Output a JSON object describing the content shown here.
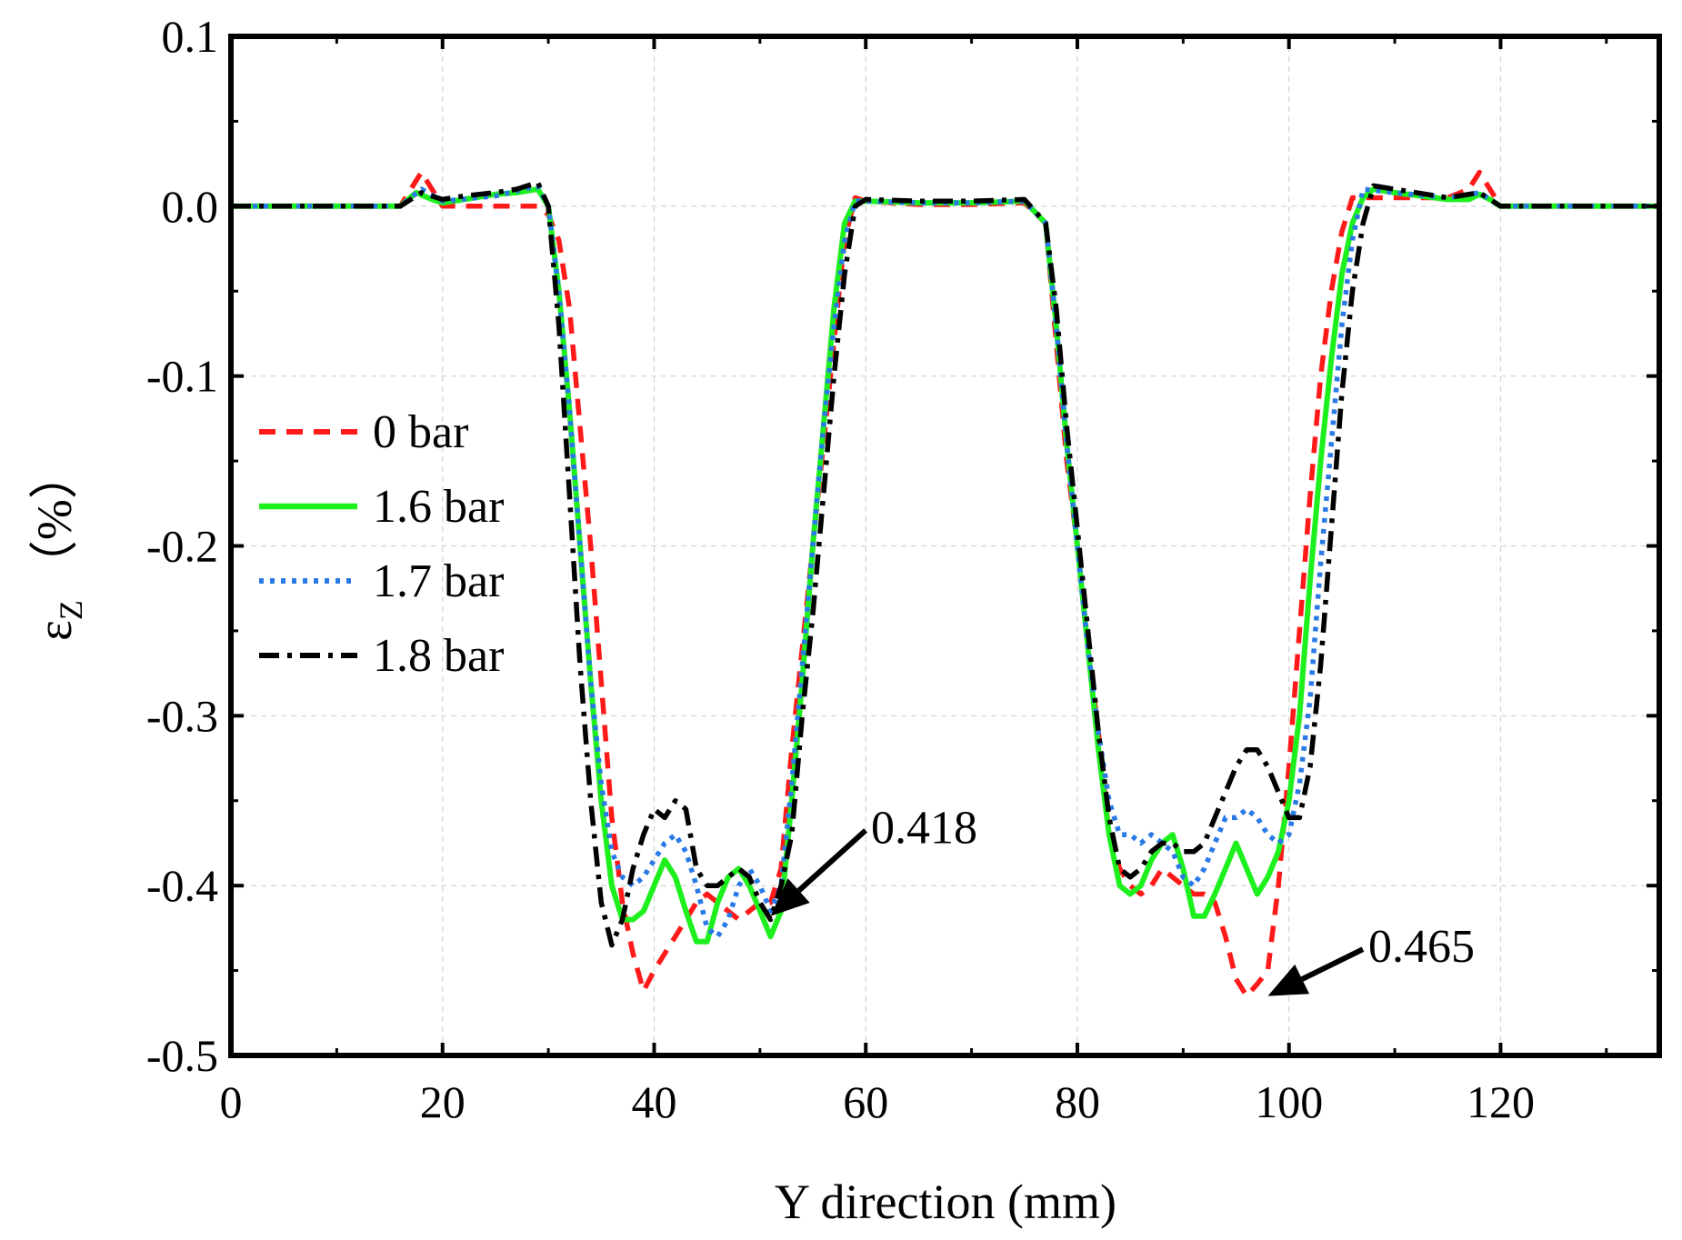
{
  "chart_data": {
    "type": "line",
    "title": "",
    "xlabel": "Y direction (mm)",
    "ylabel_symbol": "ε",
    "ylabel_sub": "Z",
    "ylabel_unit": "（%）",
    "xlim": [
      0,
      135
    ],
    "ylim": [
      -0.5,
      0.1
    ],
    "xticks": [
      0,
      20,
      40,
      60,
      80,
      100,
      120
    ],
    "xtick_labels": [
      "0",
      "20",
      "40",
      "60",
      "80",
      "100",
      "120"
    ],
    "yticks": [
      0.1,
      0.0,
      -0.1,
      -0.2,
      -0.3,
      -0.4,
      -0.5
    ],
    "ytick_labels": [
      "0.1",
      "0.0",
      "-0.1",
      "-0.2",
      "-0.3",
      "-0.4",
      "-0.5"
    ],
    "grid": true,
    "legend_position": "left-middle",
    "series": [
      {
        "name": "0 bar",
        "color": "#ff1a1a",
        "style": "dashed",
        "x": [
          0,
          16,
          18,
          20,
          25,
          28,
          29,
          30,
          31,
          32,
          33,
          34,
          35,
          36,
          37,
          38,
          39,
          40,
          41,
          42,
          43,
          44,
          45,
          46,
          47,
          48,
          49,
          50,
          51,
          52,
          53,
          54,
          55,
          56,
          57,
          58,
          59,
          60,
          65,
          70,
          75,
          77,
          78,
          79,
          80,
          81,
          82,
          83,
          84,
          85,
          86,
          87,
          88,
          89,
          90,
          91,
          92,
          93,
          94,
          95,
          96,
          97,
          98,
          99,
          100,
          101,
          102,
          103,
          104,
          105,
          106,
          107,
          110,
          115,
          117,
          118,
          120,
          135
        ],
        "y": [
          0,
          0,
          0.02,
          0,
          0,
          0,
          0,
          -0.005,
          -0.02,
          -0.06,
          -0.13,
          -0.2,
          -0.28,
          -0.36,
          -0.41,
          -0.44,
          -0.462,
          -0.45,
          -0.44,
          -0.43,
          -0.42,
          -0.41,
          -0.405,
          -0.41,
          -0.415,
          -0.42,
          -0.415,
          -0.41,
          -0.41,
          -0.39,
          -0.32,
          -0.26,
          -0.2,
          -0.14,
          -0.08,
          -0.02,
          0.005,
          0.003,
          0.001,
          0.001,
          0.002,
          -0.01,
          -0.08,
          -0.15,
          -0.2,
          -0.26,
          -0.31,
          -0.37,
          -0.39,
          -0.4,
          -0.405,
          -0.4,
          -0.39,
          -0.395,
          -0.4,
          -0.405,
          -0.405,
          -0.41,
          -0.43,
          -0.455,
          -0.465,
          -0.458,
          -0.45,
          -0.4,
          -0.33,
          -0.25,
          -0.17,
          -0.1,
          -0.05,
          -0.015,
          0.005,
          0.005,
          0.005,
          0.005,
          0.01,
          0.02,
          0,
          0
        ]
      },
      {
        "name": "1.6 bar",
        "color": "#1ef01e",
        "style": "solid",
        "x": [
          0,
          16,
          17.5,
          19,
          20,
          22,
          25,
          27,
          29,
          30,
          31,
          32,
          33,
          34,
          35,
          36,
          37,
          38,
          39,
          40,
          41,
          42,
          43,
          44,
          45,
          46,
          47,
          48,
          49,
          50,
          51,
          52,
          53,
          54,
          55,
          56,
          57,
          58,
          59,
          60,
          65,
          70,
          75,
          77,
          78,
          79,
          80,
          81,
          82,
          83,
          84,
          85,
          86,
          87,
          88,
          89,
          90,
          91,
          92,
          93,
          94,
          95,
          96,
          97,
          98,
          99,
          100,
          101,
          102,
          103,
          104,
          105,
          106,
          107,
          108,
          110,
          115,
          117,
          118,
          119,
          120,
          135
        ],
        "y": [
          0,
          0,
          0.008,
          0.004,
          0.002,
          0.004,
          0.007,
          0.008,
          0.01,
          0,
          -0.05,
          -0.12,
          -0.2,
          -0.28,
          -0.35,
          -0.4,
          -0.42,
          -0.42,
          -0.415,
          -0.4,
          -0.385,
          -0.395,
          -0.415,
          -0.433,
          -0.433,
          -0.41,
          -0.395,
          -0.39,
          -0.4,
          -0.415,
          -0.43,
          -0.415,
          -0.35,
          -0.28,
          -0.2,
          -0.13,
          -0.06,
          -0.01,
          0.003,
          0.003,
          0.002,
          0.002,
          0.003,
          -0.01,
          -0.07,
          -0.14,
          -0.2,
          -0.26,
          -0.32,
          -0.37,
          -0.4,
          -0.405,
          -0.4,
          -0.385,
          -0.375,
          -0.37,
          -0.39,
          -0.418,
          -0.418,
          -0.405,
          -0.39,
          -0.375,
          -0.39,
          -0.405,
          -0.395,
          -0.38,
          -0.35,
          -0.3,
          -0.22,
          -0.15,
          -0.09,
          -0.04,
          -0.01,
          0.005,
          0.01,
          0.008,
          0.004,
          0.004,
          0.007,
          0.004,
          0,
          0
        ]
      },
      {
        "name": "1.7 bar",
        "color": "#2a7ae6",
        "style": "dotted",
        "x": [
          0,
          16,
          18,
          20,
          25,
          29,
          30,
          31,
          32,
          33,
          34,
          35,
          36,
          37,
          38,
          39,
          40,
          41,
          42,
          43,
          44,
          45,
          46,
          47,
          48,
          49,
          50,
          51,
          52,
          53,
          54,
          55,
          56,
          57,
          58,
          59,
          60,
          65,
          70,
          75,
          77,
          78,
          79,
          80,
          81,
          82,
          83,
          84,
          85,
          86,
          87,
          88,
          89,
          90,
          91,
          92,
          93,
          94,
          95,
          96,
          97,
          98,
          99,
          100,
          101,
          102,
          103,
          104,
          105,
          106,
          107,
          110,
          115,
          118,
          120,
          135
        ],
        "y": [
          0,
          0,
          0.01,
          0.003,
          0.006,
          0.012,
          0,
          -0.05,
          -0.12,
          -0.2,
          -0.28,
          -0.34,
          -0.38,
          -0.395,
          -0.4,
          -0.395,
          -0.385,
          -0.375,
          -0.37,
          -0.38,
          -0.4,
          -0.425,
          -0.43,
          -0.42,
          -0.4,
          -0.39,
          -0.4,
          -0.415,
          -0.4,
          -0.34,
          -0.27,
          -0.2,
          -0.13,
          -0.07,
          -0.02,
          0.003,
          0.003,
          0.002,
          0.002,
          0.003,
          -0.01,
          -0.07,
          -0.14,
          -0.2,
          -0.26,
          -0.31,
          -0.35,
          -0.37,
          -0.37,
          -0.375,
          -0.37,
          -0.375,
          -0.38,
          -0.395,
          -0.4,
          -0.39,
          -0.375,
          -0.36,
          -0.36,
          -0.355,
          -0.36,
          -0.37,
          -0.375,
          -0.37,
          -0.34,
          -0.29,
          -0.21,
          -0.14,
          -0.07,
          -0.02,
          0.01,
          0.008,
          0.005,
          0.008,
          0,
          0
        ]
      },
      {
        "name": "1.8 bar",
        "color": "#000000",
        "style": "dashdot",
        "x": [
          0,
          16,
          18,
          20,
          22,
          25,
          27,
          29,
          30,
          31,
          32,
          33,
          34,
          35,
          36,
          37,
          38,
          39,
          40,
          41,
          42,
          43,
          44,
          45,
          46,
          47,
          48,
          49,
          50,
          51,
          52,
          53,
          54,
          55,
          56,
          57,
          58,
          59,
          60,
          65,
          70,
          75,
          77,
          78,
          79,
          80,
          81,
          82,
          83,
          84,
          85,
          86,
          87,
          88,
          89,
          90,
          91,
          92,
          93,
          94,
          95,
          96,
          97,
          98,
          99,
          100,
          101,
          102,
          103,
          104,
          105,
          106,
          107,
          108,
          110,
          115,
          118,
          120,
          135
        ],
        "y": [
          0,
          0,
          0.008,
          0.004,
          0.006,
          0.008,
          0.01,
          0.014,
          0,
          -0.07,
          -0.17,
          -0.27,
          -0.35,
          -0.41,
          -0.435,
          -0.42,
          -0.39,
          -0.37,
          -0.355,
          -0.36,
          -0.35,
          -0.355,
          -0.39,
          -0.4,
          -0.4,
          -0.395,
          -0.39,
          -0.395,
          -0.41,
          -0.42,
          -0.4,
          -0.37,
          -0.3,
          -0.24,
          -0.17,
          -0.1,
          -0.04,
          0,
          0.004,
          0.003,
          0.003,
          0.004,
          -0.01,
          -0.06,
          -0.13,
          -0.19,
          -0.25,
          -0.31,
          -0.36,
          -0.39,
          -0.395,
          -0.39,
          -0.38,
          -0.375,
          -0.375,
          -0.38,
          -0.38,
          -0.375,
          -0.36,
          -0.345,
          -0.33,
          -0.32,
          -0.32,
          -0.33,
          -0.345,
          -0.36,
          -0.36,
          -0.33,
          -0.27,
          -0.19,
          -0.11,
          -0.05,
          -0.01,
          0.012,
          0.01,
          0.005,
          0.008,
          0,
          0
        ]
      }
    ],
    "annotations": [
      {
        "text": "0.418",
        "arrow_to": [
          51,
          -0.418
        ],
        "text_at": [
          60.5,
          -0.375
        ]
      },
      {
        "text": "0.465",
        "arrow_to": [
          98,
          -0.465
        ],
        "text_at": [
          107.5,
          -0.445
        ]
      }
    ]
  }
}
